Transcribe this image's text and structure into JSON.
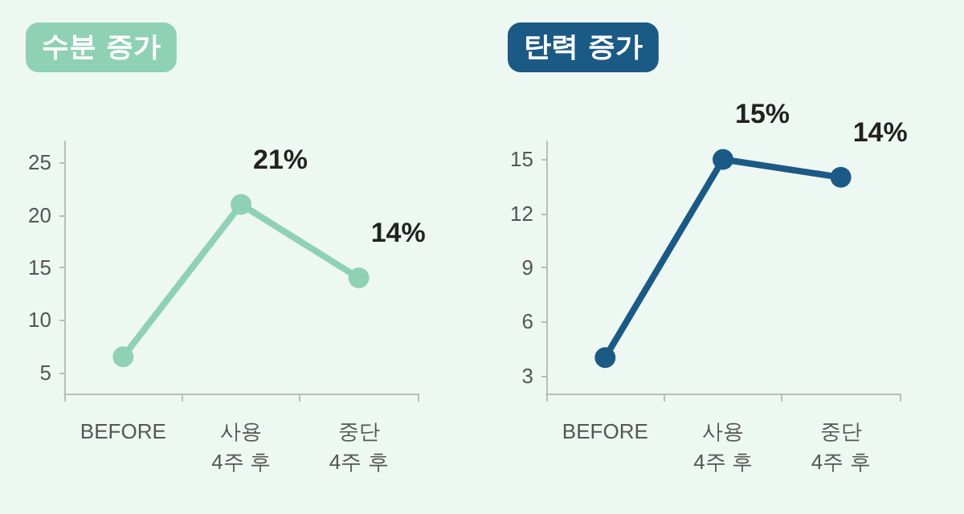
{
  "chart_data": [
    {
      "type": "line",
      "title": "수분 증가",
      "categories": [
        "BEFORE",
        "사용\n4주 후",
        "중단\n4주 후"
      ],
      "series": [
        {
          "color": "#8fd1b5",
          "values": [
            6.5,
            21,
            14
          ],
          "value_labels": [
            null,
            "21%",
            "14%"
          ]
        }
      ],
      "ylim": [
        3,
        27
      ],
      "yticks": [
        5,
        10,
        15,
        20,
        25
      ],
      "grid": false,
      "marker": "circle",
      "line_style": "solid"
    },
    {
      "type": "line",
      "title": "탄력 증가",
      "categories": [
        "BEFORE",
        "사용\n4주 후",
        "중단\n4주 후"
      ],
      "series": [
        {
          "color": "#1c5a86",
          "values": [
            4,
            15,
            14
          ],
          "value_labels": [
            null,
            "15%",
            "14%"
          ]
        }
      ],
      "ylim": [
        2,
        16
      ],
      "yticks": [
        3,
        6,
        9,
        12,
        15
      ],
      "grid": false,
      "marker": "circle",
      "line_style": "solid"
    }
  ]
}
